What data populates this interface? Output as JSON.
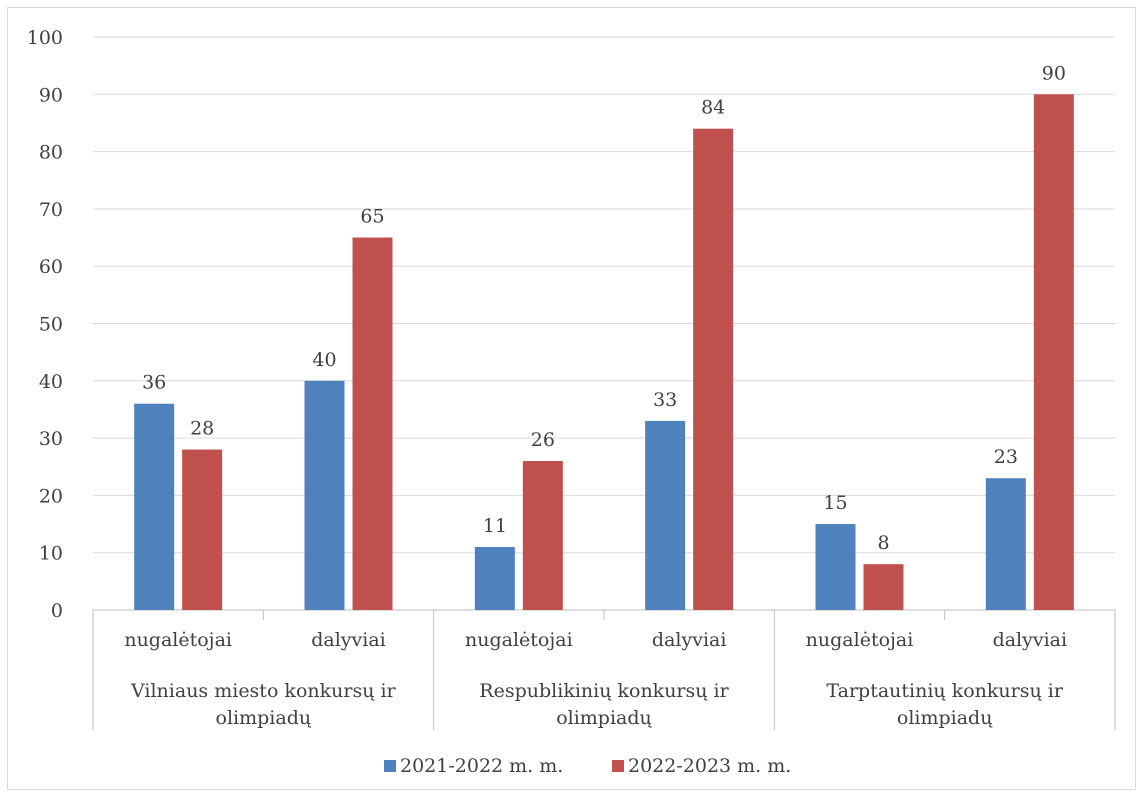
{
  "chart_data": {
    "type": "bar",
    "groups": [
      {
        "label_lines": [
          "Vilniaus miesto konkursų ir",
          "olimpiadų"
        ],
        "subcategories": [
          "nugalėtojai",
          "dalyviai"
        ]
      },
      {
        "label_lines": [
          "Respublikinių konkursų ir",
          "olimpiadų"
        ],
        "subcategories": [
          "nugalėtojai",
          "dalyviai"
        ]
      },
      {
        "label_lines": [
          "Tarptautinių konkursų ir",
          "olimpiadų"
        ],
        "subcategories": [
          "nugalėtojai",
          "dalyviai"
        ]
      }
    ],
    "series": [
      {
        "name": "2021-2022 m. m.",
        "color": "#4f81bd",
        "values": [
          36,
          40,
          11,
          33,
          15,
          23
        ]
      },
      {
        "name": "2022-2023 m. m.",
        "color": "#c0504d",
        "values": [
          28,
          65,
          26,
          84,
          8,
          90
        ]
      }
    ],
    "ylim": [
      0,
      100
    ],
    "yticks": [
      "0",
      "10",
      "20",
      "30",
      "40",
      "50",
      "60",
      "70",
      "80",
      "90",
      "100"
    ],
    "grid": true,
    "data_labels": true,
    "legend": "bottom"
  }
}
